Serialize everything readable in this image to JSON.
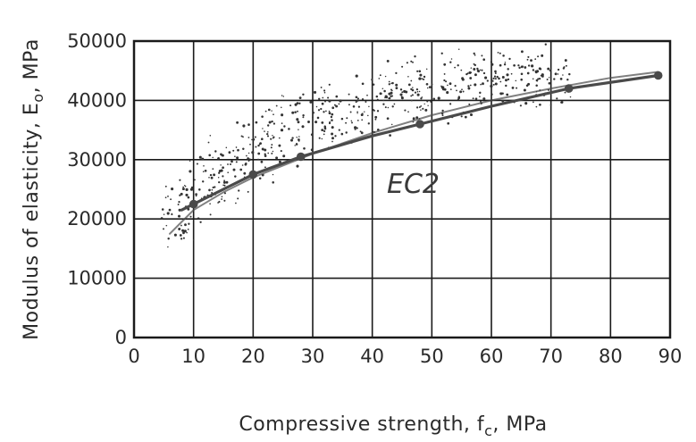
{
  "chart_data": {
    "type": "scatter",
    "xlabel": "Compressive strength, f",
    "xlabel_sub": "c",
    "xlabel_unit": ", MPa",
    "ylabel": "Modulus of elasticity, E",
    "ylabel_sub": "o",
    "ylabel_unit": ", MPa",
    "xlim": [
      0,
      90
    ],
    "ylim": [
      0,
      50000
    ],
    "xticks": [
      0,
      10,
      20,
      30,
      40,
      50,
      60,
      70,
      80,
      90
    ],
    "yticks": [
      0,
      10000,
      20000,
      30000,
      40000,
      50000
    ],
    "grid": true,
    "annotations": [
      {
        "text": "EC2",
        "x": 44,
        "y": 27500
      }
    ],
    "series": [
      {
        "kind": "curve",
        "x": [
          8,
          10,
          20,
          28,
          40,
          48,
          60,
          73,
          88
        ],
        "y": [
          21500,
          22500,
          27500,
          30500,
          34000,
          36000,
          39000,
          42000,
          44200
        ]
      },
      {
        "kind": "curve",
        "x": [
          6,
          8,
          10,
          15,
          20,
          30,
          40,
          50,
          60,
          70,
          80,
          88
        ],
        "y": [
          17500,
          19500,
          21500,
          24500,
          27000,
          31000,
          34500,
          37500,
          40000,
          42000,
          43800,
          44800
        ]
      },
      {
        "kind": "markers",
        "x": [
          10,
          20,
          28,
          48,
          73,
          88
        ],
        "y": [
          22500,
          27500,
          30500,
          36000,
          42000,
          44200
        ]
      },
      {
        "kind": "scatter",
        "centers": [
          [
            8,
            21000
          ],
          [
            12,
            26000
          ],
          [
            16,
            29000
          ],
          [
            20,
            32000
          ],
          [
            25,
            35000
          ],
          [
            30,
            37000
          ],
          [
            35,
            38500
          ],
          [
            40,
            40000
          ],
          [
            45,
            41000
          ],
          [
            50,
            42000
          ],
          [
            55,
            42500
          ],
          [
            60,
            43000
          ],
          [
            65,
            44000
          ],
          [
            70,
            44500
          ]
        ]
      }
    ],
    "colors": {
      "curve": "#4a4a4a",
      "grid": "#1a1a1a",
      "points": "#333333"
    }
  }
}
